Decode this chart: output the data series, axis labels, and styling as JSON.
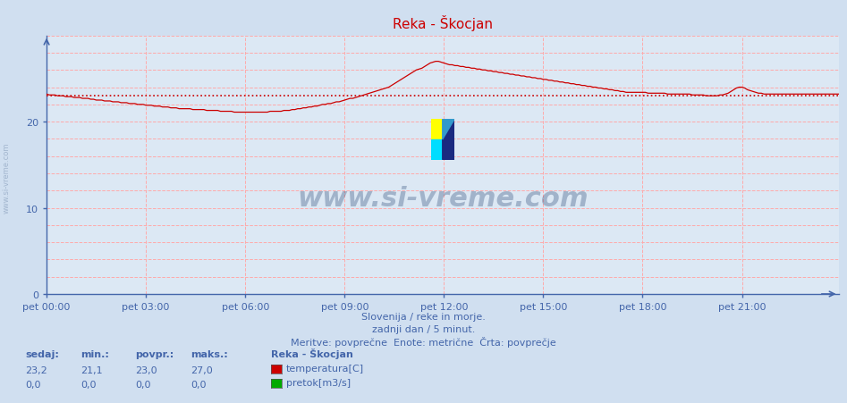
{
  "title": "Reka - Škocjan",
  "title_color": "#cc0000",
  "bg_color": "#d0dff0",
  "plot_bg_color": "#dce8f4",
  "grid_color": "#ffaaaa",
  "axis_color": "#4466aa",
  "text_color": "#4466aa",
  "ylim": [
    0,
    30
  ],
  "yticks": [
    0,
    10,
    20
  ],
  "xlabel_ticks": [
    "pet 00:00",
    "pet 03:00",
    "pet 06:00",
    "pet 09:00",
    "pet 12:00",
    "pet 15:00",
    "pet 18:00",
    "pet 21:00"
  ],
  "line_color": "#cc0000",
  "avg_line_color": "#cc0000",
  "avg_value": 23.0,
  "watermark_text": "www.si-vreme.com",
  "watermark_color": "#1a3a6a",
  "watermark_alpha": 0.3,
  "footer_line1": "Slovenija / reke in morje.",
  "footer_line2": "zadnji dan / 5 minut.",
  "footer_line3": "Meritve: povprečne  Enote: metrične  Črta: povprečje",
  "legend_title": "Reka - Škocjan",
  "legend_items": [
    {
      "label": "temperatura[C]",
      "color": "#cc0000"
    },
    {
      "label": "pretok[m3/s]",
      "color": "#00aa00"
    }
  ],
  "stats_headers": [
    "sedaj:",
    "min.:",
    "povpr.:",
    "maks.:"
  ],
  "stats_values": [
    [
      "23,2",
      "21,1",
      "23,0",
      "27,0"
    ],
    [
      "0,0",
      "0,0",
      "0,0",
      "0,0"
    ]
  ],
  "n_points": 288,
  "temp_data": [
    23.2,
    23.1,
    23.1,
    23.1,
    23.0,
    23.0,
    23.0,
    22.9,
    22.9,
    22.9,
    22.8,
    22.8,
    22.8,
    22.7,
    22.7,
    22.7,
    22.6,
    22.6,
    22.5,
    22.5,
    22.5,
    22.4,
    22.4,
    22.4,
    22.3,
    22.3,
    22.3,
    22.2,
    22.2,
    22.2,
    22.1,
    22.1,
    22.1,
    22.0,
    22.0,
    22.0,
    21.9,
    21.9,
    21.9,
    21.8,
    21.8,
    21.8,
    21.7,
    21.7,
    21.7,
    21.6,
    21.6,
    21.6,
    21.5,
    21.5,
    21.5,
    21.5,
    21.5,
    21.4,
    21.4,
    21.4,
    21.4,
    21.4,
    21.3,
    21.3,
    21.3,
    21.3,
    21.3,
    21.2,
    21.2,
    21.2,
    21.2,
    21.2,
    21.1,
    21.1,
    21.1,
    21.1,
    21.1,
    21.1,
    21.1,
    21.1,
    21.1,
    21.1,
    21.1,
    21.1,
    21.1,
    21.2,
    21.2,
    21.2,
    21.2,
    21.2,
    21.3,
    21.3,
    21.3,
    21.4,
    21.4,
    21.5,
    21.5,
    21.6,
    21.6,
    21.7,
    21.7,
    21.8,
    21.8,
    21.9,
    22.0,
    22.0,
    22.1,
    22.1,
    22.2,
    22.3,
    22.3,
    22.4,
    22.5,
    22.6,
    22.7,
    22.7,
    22.8,
    22.9,
    23.0,
    23.1,
    23.2,
    23.3,
    23.4,
    23.5,
    23.6,
    23.7,
    23.8,
    23.9,
    24.0,
    24.2,
    24.4,
    24.6,
    24.8,
    25.0,
    25.2,
    25.4,
    25.6,
    25.8,
    26.0,
    26.1,
    26.2,
    26.4,
    26.6,
    26.8,
    26.9,
    27.0,
    27.0,
    26.9,
    26.8,
    26.7,
    26.6,
    26.6,
    26.5,
    26.5,
    26.4,
    26.4,
    26.3,
    26.3,
    26.2,
    26.2,
    26.1,
    26.1,
    26.0,
    26.0,
    25.9,
    25.9,
    25.8,
    25.8,
    25.7,
    25.7,
    25.6,
    25.6,
    25.5,
    25.5,
    25.4,
    25.4,
    25.3,
    25.3,
    25.2,
    25.2,
    25.1,
    25.1,
    25.0,
    25.0,
    24.9,
    24.9,
    24.8,
    24.8,
    24.7,
    24.7,
    24.6,
    24.6,
    24.5,
    24.5,
    24.4,
    24.4,
    24.3,
    24.3,
    24.2,
    24.2,
    24.1,
    24.1,
    24.0,
    24.0,
    23.9,
    23.9,
    23.8,
    23.8,
    23.7,
    23.7,
    23.6,
    23.6,
    23.5,
    23.5,
    23.4,
    23.4,
    23.4,
    23.4,
    23.4,
    23.4,
    23.4,
    23.4,
    23.3,
    23.3,
    23.3,
    23.3,
    23.3,
    23.3,
    23.3,
    23.2,
    23.2,
    23.2,
    23.2,
    23.2,
    23.2,
    23.2,
    23.2,
    23.2,
    23.1,
    23.1,
    23.1,
    23.1,
    23.1,
    23.0,
    23.0,
    23.0,
    23.0,
    23.0,
    23.1,
    23.1,
    23.2,
    23.3,
    23.5,
    23.7,
    23.9,
    24.0,
    24.0,
    23.9,
    23.7,
    23.6,
    23.5,
    23.4,
    23.3,
    23.3,
    23.2,
    23.2,
    23.2,
    23.2,
    23.2,
    23.2,
    23.2,
    23.2,
    23.2,
    23.2,
    23.2,
    23.2,
    23.2,
    23.2,
    23.2,
    23.2,
    23.2,
    23.2,
    23.2,
    23.2,
    23.2,
    23.2,
    23.2,
    23.2,
    23.2,
    23.2,
    23.2,
    23.2
  ]
}
